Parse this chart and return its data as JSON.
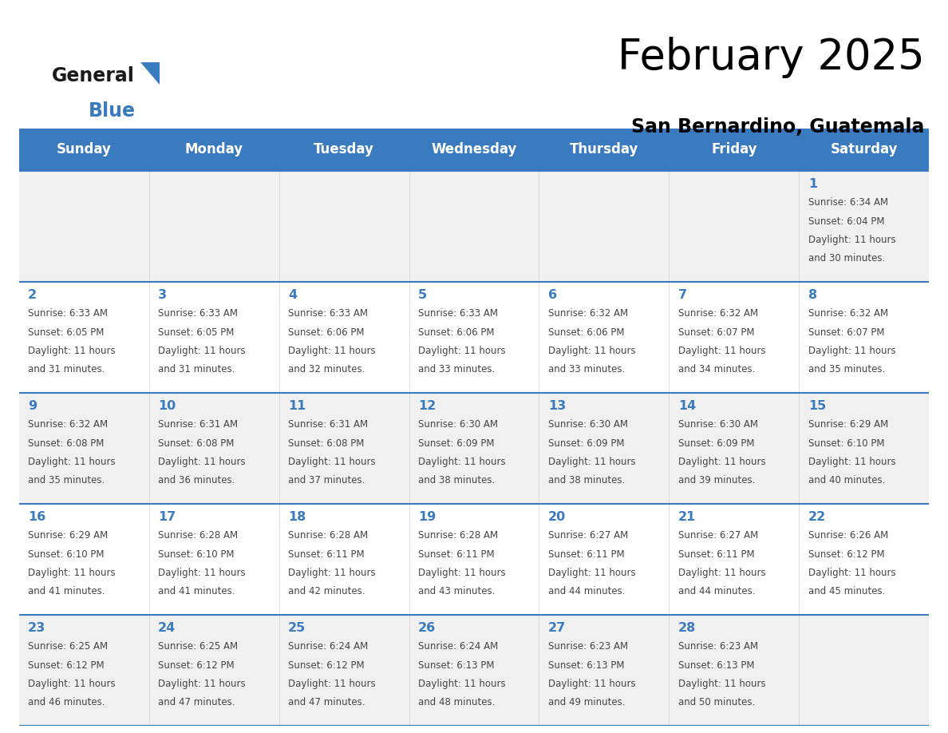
{
  "title": "February 2025",
  "subtitle": "San Bernardino, Guatemala",
  "header_color": "#3a7abf",
  "header_text_color": "#ffffff",
  "row_colors": [
    "#f0f0f0",
    "#ffffff",
    "#f0f0f0",
    "#ffffff",
    "#f0f0f0"
  ],
  "day_number_color": "#3a7abf",
  "info_text_color": "#444444",
  "border_color": "#3a7abf",
  "weekdays": [
    "Sunday",
    "Monday",
    "Tuesday",
    "Wednesday",
    "Thursday",
    "Friday",
    "Saturday"
  ],
  "days": [
    {
      "day": 1,
      "col": 6,
      "row": 0,
      "sunrise": "6:34 AM",
      "sunset": "6:04 PM",
      "daylight": "11 hours and 30 minutes."
    },
    {
      "day": 2,
      "col": 0,
      "row": 1,
      "sunrise": "6:33 AM",
      "sunset": "6:05 PM",
      "daylight": "11 hours and 31 minutes."
    },
    {
      "day": 3,
      "col": 1,
      "row": 1,
      "sunrise": "6:33 AM",
      "sunset": "6:05 PM",
      "daylight": "11 hours and 31 minutes."
    },
    {
      "day": 4,
      "col": 2,
      "row": 1,
      "sunrise": "6:33 AM",
      "sunset": "6:06 PM",
      "daylight": "11 hours and 32 minutes."
    },
    {
      "day": 5,
      "col": 3,
      "row": 1,
      "sunrise": "6:33 AM",
      "sunset": "6:06 PM",
      "daylight": "11 hours and 33 minutes."
    },
    {
      "day": 6,
      "col": 4,
      "row": 1,
      "sunrise": "6:32 AM",
      "sunset": "6:06 PM",
      "daylight": "11 hours and 33 minutes."
    },
    {
      "day": 7,
      "col": 5,
      "row": 1,
      "sunrise": "6:32 AM",
      "sunset": "6:07 PM",
      "daylight": "11 hours and 34 minutes."
    },
    {
      "day": 8,
      "col": 6,
      "row": 1,
      "sunrise": "6:32 AM",
      "sunset": "6:07 PM",
      "daylight": "11 hours and 35 minutes."
    },
    {
      "day": 9,
      "col": 0,
      "row": 2,
      "sunrise": "6:32 AM",
      "sunset": "6:08 PM",
      "daylight": "11 hours and 35 minutes."
    },
    {
      "day": 10,
      "col": 1,
      "row": 2,
      "sunrise": "6:31 AM",
      "sunset": "6:08 PM",
      "daylight": "11 hours and 36 minutes."
    },
    {
      "day": 11,
      "col": 2,
      "row": 2,
      "sunrise": "6:31 AM",
      "sunset": "6:08 PM",
      "daylight": "11 hours and 37 minutes."
    },
    {
      "day": 12,
      "col": 3,
      "row": 2,
      "sunrise": "6:30 AM",
      "sunset": "6:09 PM",
      "daylight": "11 hours and 38 minutes."
    },
    {
      "day": 13,
      "col": 4,
      "row": 2,
      "sunrise": "6:30 AM",
      "sunset": "6:09 PM",
      "daylight": "11 hours and 38 minutes."
    },
    {
      "day": 14,
      "col": 5,
      "row": 2,
      "sunrise": "6:30 AM",
      "sunset": "6:09 PM",
      "daylight": "11 hours and 39 minutes."
    },
    {
      "day": 15,
      "col": 6,
      "row": 2,
      "sunrise": "6:29 AM",
      "sunset": "6:10 PM",
      "daylight": "11 hours and 40 minutes."
    },
    {
      "day": 16,
      "col": 0,
      "row": 3,
      "sunrise": "6:29 AM",
      "sunset": "6:10 PM",
      "daylight": "11 hours and 41 minutes."
    },
    {
      "day": 17,
      "col": 1,
      "row": 3,
      "sunrise": "6:28 AM",
      "sunset": "6:10 PM",
      "daylight": "11 hours and 41 minutes."
    },
    {
      "day": 18,
      "col": 2,
      "row": 3,
      "sunrise": "6:28 AM",
      "sunset": "6:11 PM",
      "daylight": "11 hours and 42 minutes."
    },
    {
      "day": 19,
      "col": 3,
      "row": 3,
      "sunrise": "6:28 AM",
      "sunset": "6:11 PM",
      "daylight": "11 hours and 43 minutes."
    },
    {
      "day": 20,
      "col": 4,
      "row": 3,
      "sunrise": "6:27 AM",
      "sunset": "6:11 PM",
      "daylight": "11 hours and 44 minutes."
    },
    {
      "day": 21,
      "col": 5,
      "row": 3,
      "sunrise": "6:27 AM",
      "sunset": "6:11 PM",
      "daylight": "11 hours and 44 minutes."
    },
    {
      "day": 22,
      "col": 6,
      "row": 3,
      "sunrise": "6:26 AM",
      "sunset": "6:12 PM",
      "daylight": "11 hours and 45 minutes."
    },
    {
      "day": 23,
      "col": 0,
      "row": 4,
      "sunrise": "6:25 AM",
      "sunset": "6:12 PM",
      "daylight": "11 hours and 46 minutes."
    },
    {
      "day": 24,
      "col": 1,
      "row": 4,
      "sunrise": "6:25 AM",
      "sunset": "6:12 PM",
      "daylight": "11 hours and 47 minutes."
    },
    {
      "day": 25,
      "col": 2,
      "row": 4,
      "sunrise": "6:24 AM",
      "sunset": "6:12 PM",
      "daylight": "11 hours and 47 minutes."
    },
    {
      "day": 26,
      "col": 3,
      "row": 4,
      "sunrise": "6:24 AM",
      "sunset": "6:13 PM",
      "daylight": "11 hours and 48 minutes."
    },
    {
      "day": 27,
      "col": 4,
      "row": 4,
      "sunrise": "6:23 AM",
      "sunset": "6:13 PM",
      "daylight": "11 hours and 49 minutes."
    },
    {
      "day": 28,
      "col": 5,
      "row": 4,
      "sunrise": "6:23 AM",
      "sunset": "6:13 PM",
      "daylight": "11 hours and 50 minutes."
    }
  ],
  "fig_width": 11.88,
  "fig_height": 9.18,
  "dpi": 100
}
